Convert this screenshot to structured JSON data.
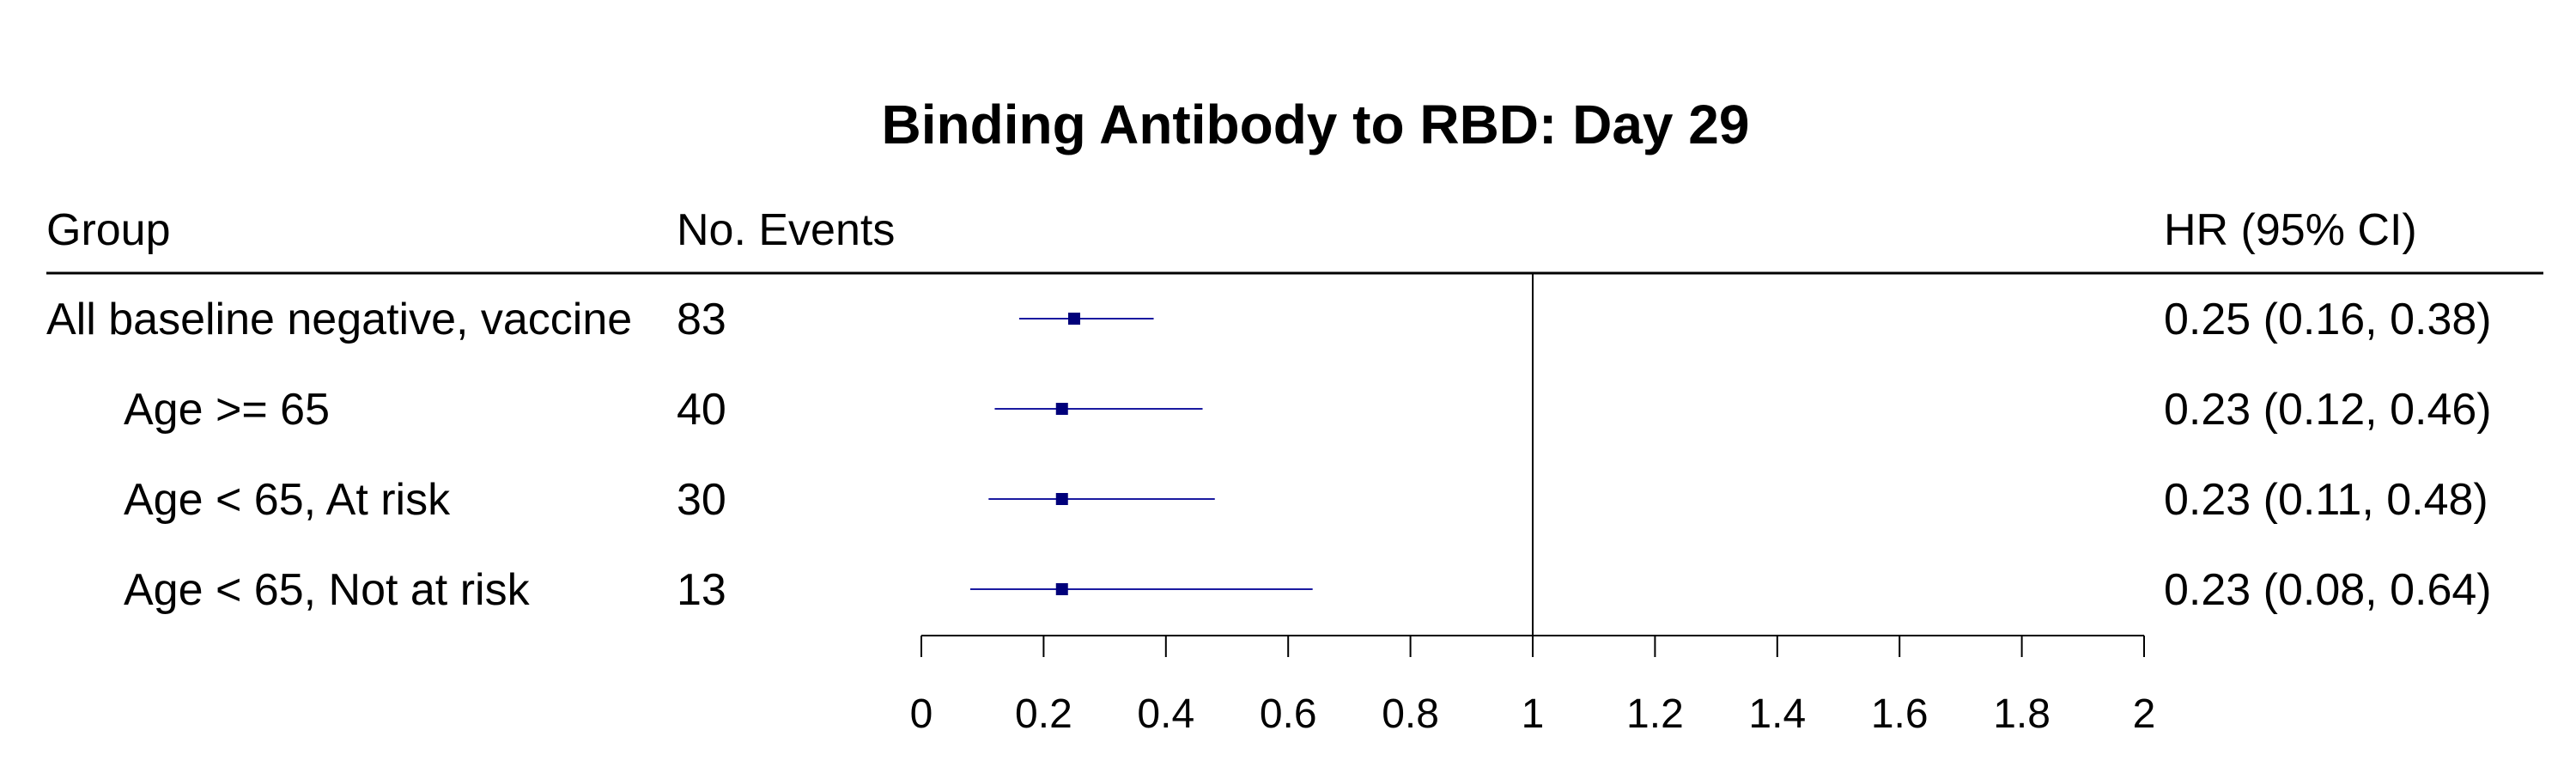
{
  "chart_data": {
    "type": "forest",
    "title": "Binding Antibody to RBD: Day 29",
    "headers": {
      "group": "Group",
      "events": "No. Events",
      "hr": "HR (95% CI)"
    },
    "rows": [
      {
        "group": "All baseline negative, vaccine",
        "indent": false,
        "events": "83",
        "hr": 0.25,
        "lower": 0.16,
        "upper": 0.38,
        "hr_label": "0.25 (0.16, 0.38)"
      },
      {
        "group": "Age >= 65",
        "indent": true,
        "events": "40",
        "hr": 0.23,
        "lower": 0.12,
        "upper": 0.46,
        "hr_label": "0.23 (0.12, 0.46)"
      },
      {
        "group": "Age < 65, At risk",
        "indent": true,
        "events": "30",
        "hr": 0.23,
        "lower": 0.11,
        "upper": 0.48,
        "hr_label": "0.23 (0.11, 0.48)"
      },
      {
        "group": "Age < 65, Not at risk",
        "indent": true,
        "events": "13",
        "hr": 0.23,
        "lower": 0.08,
        "upper": 0.64,
        "hr_label": "0.23 (0.08, 0.64)"
      }
    ],
    "xlim": [
      0,
      2
    ],
    "x_ticks": [
      0,
      0.2,
      0.4,
      0.6,
      0.8,
      1,
      1.2,
      1.4,
      1.6,
      1.8,
      2
    ],
    "x_tick_labels": [
      "0",
      "0.2",
      "0.4",
      "0.6",
      "0.8",
      "1",
      "1.2",
      "1.4",
      "1.6",
      "1.8",
      "2"
    ],
    "reference_line": 1,
    "colors": {
      "marker": "#00007a",
      "ci_line": "#1a1aa0",
      "axis": "#000000"
    }
  }
}
